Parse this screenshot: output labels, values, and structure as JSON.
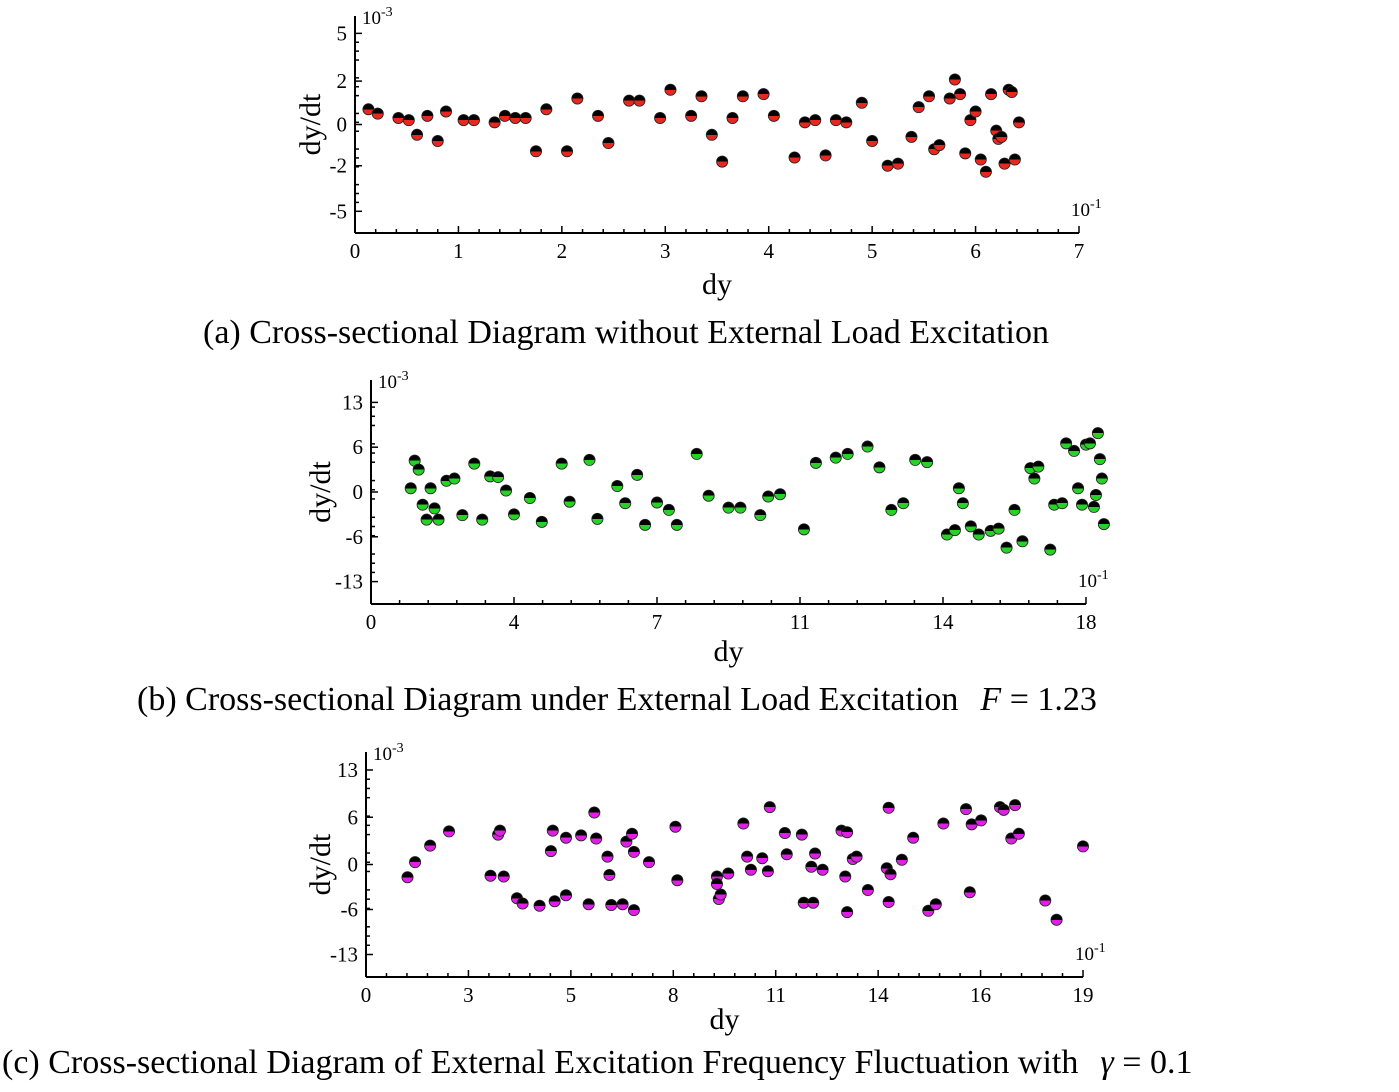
{
  "chart_data": [
    {
      "type": "scatter",
      "panel": "a",
      "xlabel": "dy",
      "ylabel": "dy/dt",
      "x_scale_note": "10-1",
      "y_scale_note": "10-3",
      "xticks": [
        "0",
        "1",
        "2",
        "3",
        "4",
        "5",
        "6",
        "7"
      ],
      "yticks": [
        "5",
        "2",
        "0",
        "-2",
        "-5"
      ],
      "xlim": [
        0,
        7
      ],
      "ylim": [
        -5,
        5
      ],
      "marker_top_color": "#000000",
      "marker_bottom_color": "#e8281f",
      "points": [
        [
          0.13,
          0.7
        ],
        [
          0.22,
          0.5
        ],
        [
          0.42,
          0.3
        ],
        [
          0.52,
          0.2
        ],
        [
          0.6,
          -0.5
        ],
        [
          0.7,
          0.4
        ],
        [
          0.8,
          -0.8
        ],
        [
          0.88,
          0.6
        ],
        [
          1.05,
          0.2
        ],
        [
          1.15,
          0.2
        ],
        [
          1.35,
          0.1
        ],
        [
          1.45,
          0.4
        ],
        [
          1.55,
          0.3
        ],
        [
          1.65,
          0.3
        ],
        [
          1.75,
          -1.3
        ],
        [
          1.85,
          0.7
        ],
        [
          2.05,
          -1.3
        ],
        [
          2.15,
          1.2
        ],
        [
          2.35,
          0.4
        ],
        [
          2.45,
          -0.9
        ],
        [
          2.65,
          1.1
        ],
        [
          2.75,
          1.1
        ],
        [
          2.95,
          0.3
        ],
        [
          3.05,
          1.6
        ],
        [
          3.25,
          0.4
        ],
        [
          3.35,
          1.3
        ],
        [
          3.45,
          -0.5
        ],
        [
          3.55,
          -1.8
        ],
        [
          3.65,
          0.3
        ],
        [
          3.75,
          1.3
        ],
        [
          3.95,
          1.4
        ],
        [
          4.05,
          0.4
        ],
        [
          4.25,
          -1.6
        ],
        [
          4.35,
          0.1
        ],
        [
          4.45,
          0.2
        ],
        [
          4.55,
          -1.5
        ],
        [
          4.65,
          0.2
        ],
        [
          4.75,
          0.1
        ],
        [
          4.9,
          1.0
        ],
        [
          5.0,
          -0.8
        ],
        [
          5.15,
          -2.0
        ],
        [
          5.25,
          -1.9
        ],
        [
          5.38,
          -0.6
        ],
        [
          5.45,
          0.8
        ],
        [
          5.55,
          1.3
        ],
        [
          5.6,
          -1.2
        ],
        [
          5.65,
          -1.0
        ],
        [
          5.75,
          1.2
        ],
        [
          5.8,
          2.1
        ],
        [
          5.85,
          1.4
        ],
        [
          5.9,
          -1.4
        ],
        [
          5.95,
          0.2
        ],
        [
          6.0,
          0.6
        ],
        [
          6.05,
          -1.7
        ],
        [
          6.1,
          -2.4
        ],
        [
          6.15,
          1.4
        ],
        [
          6.2,
          -0.3
        ],
        [
          6.22,
          -0.7
        ],
        [
          6.25,
          -0.6
        ],
        [
          6.28,
          -1.9
        ],
        [
          6.32,
          1.6
        ],
        [
          6.35,
          1.5
        ],
        [
          6.38,
          -1.7
        ],
        [
          6.42,
          0.1
        ]
      ]
    },
    {
      "type": "scatter",
      "panel": "b",
      "xlabel": "dy",
      "ylabel": "dy/dt",
      "x_scale_note": "10-1",
      "y_scale_note": "10-3",
      "xticks": [
        "0",
        "4",
        "7",
        "11",
        "14",
        "18"
      ],
      "yticks": [
        "13",
        "6",
        "0",
        "-6",
        "-13"
      ],
      "xlim": [
        0,
        18
      ],
      "ylim": [
        -13,
        13
      ],
      "marker_top_color": "#000000",
      "marker_bottom_color": "#27d127",
      "points": [
        [
          1.0,
          0.5
        ],
        [
          1.1,
          4.2
        ],
        [
          1.2,
          3.0
        ],
        [
          1.3,
          -1.7
        ],
        [
          1.4,
          -3.7
        ],
        [
          1.5,
          0.5
        ],
        [
          1.6,
          -2.2
        ],
        [
          1.7,
          -3.7
        ],
        [
          1.9,
          1.5
        ],
        [
          2.1,
          1.8
        ],
        [
          2.3,
          -3.1
        ],
        [
          2.6,
          3.8
        ],
        [
          2.8,
          -3.7
        ],
        [
          3.0,
          2.1
        ],
        [
          3.2,
          2.0
        ],
        [
          3.4,
          0.2
        ],
        [
          3.6,
          -3.0
        ],
        [
          4.0,
          -0.8
        ],
        [
          4.3,
          -4.0
        ],
        [
          4.8,
          3.8
        ],
        [
          5.0,
          -1.3
        ],
        [
          5.5,
          4.3
        ],
        [
          5.7,
          -3.6
        ],
        [
          6.2,
          0.8
        ],
        [
          6.4,
          -1.5
        ],
        [
          6.7,
          2.3
        ],
        [
          6.9,
          -4.4
        ],
        [
          7.2,
          -1.4
        ],
        [
          7.5,
          -2.4
        ],
        [
          7.7,
          -4.4
        ],
        [
          8.2,
          5.1
        ],
        [
          8.5,
          -0.5
        ],
        [
          9.0,
          -2.1
        ],
        [
          9.3,
          -2.1
        ],
        [
          9.8,
          -3.1
        ],
        [
          10.0,
          -0.6
        ],
        [
          10.3,
          -0.3
        ],
        [
          10.9,
          -5.0
        ],
        [
          11.2,
          3.9
        ],
        [
          11.7,
          4.6
        ],
        [
          12.0,
          5.1
        ],
        [
          12.5,
          6.1
        ],
        [
          12.8,
          3.3
        ],
        [
          13.1,
          -2.4
        ],
        [
          13.4,
          -1.5
        ],
        [
          13.7,
          4.3
        ],
        [
          14.0,
          4.0
        ],
        [
          14.5,
          -5.7
        ],
        [
          14.7,
          -5.1
        ],
        [
          14.8,
          0.5
        ],
        [
          14.9,
          -1.5
        ],
        [
          15.1,
          -4.6
        ],
        [
          15.3,
          -5.7
        ],
        [
          15.6,
          -5.2
        ],
        [
          15.8,
          -4.9
        ],
        [
          16.0,
          -7.7
        ],
        [
          16.2,
          -2.4
        ],
        [
          16.4,
          -6.7
        ],
        [
          16.6,
          3.2
        ],
        [
          16.7,
          1.8
        ],
        [
          16.8,
          3.4
        ],
        [
          17.1,
          -8.0
        ],
        [
          17.2,
          -1.7
        ],
        [
          17.4,
          -1.5
        ],
        [
          17.5,
          6.6
        ],
        [
          17.7,
          5.5
        ],
        [
          17.8,
          0.5
        ],
        [
          17.9,
          -1.7
        ],
        [
          18.0,
          6.4
        ],
        [
          18.1,
          6.6
        ],
        [
          18.2,
          -2.0
        ],
        [
          18.25,
          -0.4
        ],
        [
          18.3,
          8.2
        ],
        [
          18.35,
          4.4
        ],
        [
          18.4,
          1.8
        ],
        [
          18.45,
          -4.3
        ]
      ]
    },
    {
      "type": "scatter",
      "panel": "c",
      "xlabel": "dy",
      "ylabel": "dy/dt",
      "x_scale_note": "10-1",
      "y_scale_note": "10-3",
      "xticks": [
        "0",
        "3",
        "5",
        "8",
        "11",
        "14",
        "16",
        "19"
      ],
      "yticks": [
        "13",
        "6",
        "0",
        "-6",
        "-13"
      ],
      "xlim": [
        0,
        19
      ],
      "ylim": [
        -13,
        13
      ],
      "marker_top_color": "#000000",
      "marker_bottom_color": "#e01fe6",
      "points": [
        [
          1.1,
          -1.7
        ],
        [
          1.3,
          0.3
        ],
        [
          1.7,
          2.4
        ],
        [
          2.2,
          4.2
        ],
        [
          3.3,
          -1.5
        ],
        [
          3.5,
          3.8
        ],
        [
          3.55,
          4.3
        ],
        [
          3.65,
          -1.6
        ],
        [
          4.0,
          -4.5
        ],
        [
          4.15,
          -5.2
        ],
        [
          4.6,
          -5.5
        ],
        [
          4.9,
          1.7
        ],
        [
          4.95,
          4.3
        ],
        [
          5.0,
          -4.9
        ],
        [
          5.3,
          3.4
        ],
        [
          5.3,
          -4.1
        ],
        [
          5.7,
          3.7
        ],
        [
          5.9,
          -5.3
        ],
        [
          6.05,
          6.7
        ],
        [
          6.1,
          3.3
        ],
        [
          6.4,
          1.0
        ],
        [
          6.45,
          -1.4
        ],
        [
          6.5,
          -5.4
        ],
        [
          6.8,
          -5.3
        ],
        [
          6.9,
          2.9
        ],
        [
          7.05,
          3.9
        ],
        [
          7.1,
          1.6
        ],
        [
          7.1,
          -6.1
        ],
        [
          7.5,
          0.3
        ],
        [
          8.2,
          4.8
        ],
        [
          8.25,
          -2.1
        ],
        [
          9.3,
          -1.6
        ],
        [
          9.3,
          -2.6
        ],
        [
          9.35,
          -4.6
        ],
        [
          9.4,
          -4.0
        ],
        [
          9.6,
          -1.2
        ],
        [
          10.0,
          5.2
        ],
        [
          10.1,
          1.0
        ],
        [
          10.2,
          -0.7
        ],
        [
          10.5,
          0.8
        ],
        [
          10.65,
          -0.9
        ],
        [
          10.7,
          7.5
        ],
        [
          11.1,
          4.0
        ],
        [
          11.15,
          1.3
        ],
        [
          11.55,
          3.8
        ],
        [
          11.6,
          -5.1
        ],
        [
          11.85,
          -5.1
        ],
        [
          11.8,
          -0.3
        ],
        [
          11.9,
          1.4
        ],
        [
          12.1,
          -0.7
        ],
        [
          12.6,
          4.3
        ],
        [
          12.7,
          -1.6
        ],
        [
          12.75,
          4.1
        ],
        [
          12.75,
          -6.4
        ],
        [
          12.9,
          0.7
        ],
        [
          13.0,
          1.0
        ],
        [
          13.3,
          -3.4
        ],
        [
          13.8,
          -0.5
        ],
        [
          13.85,
          7.4
        ],
        [
          13.85,
          -5.0
        ],
        [
          13.9,
          -1.3
        ],
        [
          14.2,
          0.6
        ],
        [
          14.5,
          3.4
        ],
        [
          14.9,
          -6.2
        ],
        [
          15.1,
          -5.3
        ],
        [
          15.3,
          5.2
        ],
        [
          15.9,
          7.2
        ],
        [
          16.0,
          -3.7
        ],
        [
          16.05,
          5.1
        ],
        [
          16.3,
          5.6
        ],
        [
          16.8,
          7.5
        ],
        [
          16.9,
          7.1
        ],
        [
          17.1,
          3.3
        ],
        [
          17.2,
          7.8
        ],
        [
          17.3,
          3.9
        ],
        [
          18.0,
          -4.8
        ],
        [
          18.3,
          -7.6
        ],
        [
          19.0,
          2.3
        ]
      ]
    }
  ],
  "captions": {
    "a": "(a) Cross-sectional Diagram without External Load Excitation",
    "b": "(b) Cross-sectional Diagram under External Load Excitation",
    "b_math_var": "F",
    "b_math_rest": " = 1.23",
    "c": "(c) Cross-sectional Diagram of External Excitation Frequency Fluctuation with",
    "c_math_var": "γ",
    "c_math_rest": " = 0.1"
  }
}
